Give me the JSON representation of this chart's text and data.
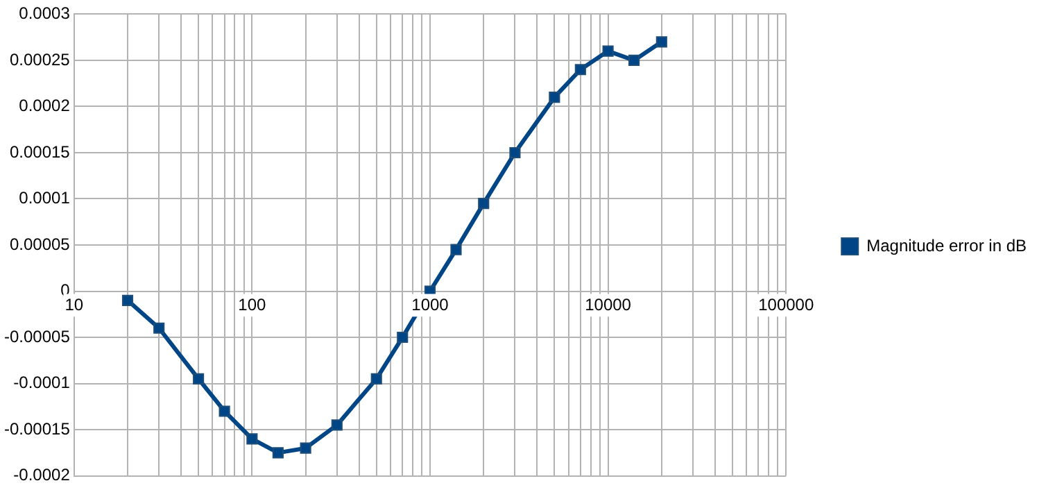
{
  "chart_data": {
    "type": "line",
    "log": "x",
    "x": [
      20,
      30,
      50,
      70,
      100,
      140,
      200,
      300,
      500,
      700,
      1000,
      1400,
      2000,
      3000,
      5000,
      7000,
      10000,
      14000,
      20000
    ],
    "series": [
      {
        "name": "Magnitude error in dB",
        "color": "#004586",
        "values": [
          -1e-05,
          -4e-05,
          -9.5e-05,
          -0.00013,
          -0.00016,
          -0.000175,
          -0.00017,
          -0.000145,
          -9.5e-05,
          -5e-05,
          0,
          4.5e-05,
          9.5e-05,
          0.00015,
          0.00021,
          0.00024,
          0.00026,
          0.00025,
          0.00027
        ]
      }
    ],
    "xlim": [
      10,
      100000
    ],
    "xticks": [
      10,
      {
        "value": 20,
        "label": null
      },
      {
        "value": 30,
        "label": null
      },
      {
        "value": 40,
        "label": null
      },
      {
        "value": 50,
        "label": null
      },
      {
        "value": 60,
        "label": null
      },
      {
        "value": 70,
        "label": null
      },
      {
        "value": 80,
        "label": null
      },
      {
        "value": 90,
        "label": null
      },
      100,
      {
        "value": 200,
        "label": null
      },
      {
        "value": 300,
        "label": null
      },
      {
        "value": 400,
        "label": null
      },
      {
        "value": 500,
        "label": null
      },
      {
        "value": 600,
        "label": null
      },
      {
        "value": 700,
        "label": null
      },
      {
        "value": 800,
        "label": null
      },
      {
        "value": 900,
        "label": null
      },
      1000,
      {
        "value": 2000,
        "label": null
      },
      {
        "value": 3000,
        "label": null
      },
      {
        "value": 4000,
        "label": null
      },
      {
        "value": 5000,
        "label": null
      },
      {
        "value": 6000,
        "label": null
      },
      {
        "value": 7000,
        "label": null
      },
      {
        "value": 8000,
        "label": null
      },
      {
        "value": 9000,
        "label": null
      },
      10000,
      {
        "value": 20000,
        "label": null
      },
      {
        "value": 30000,
        "label": null
      },
      {
        "value": 40000,
        "label": null
      },
      {
        "value": 50000,
        "label": null
      },
      {
        "value": 60000,
        "label": null
      },
      {
        "value": 70000,
        "label": null
      },
      {
        "value": 80000,
        "label": null
      },
      {
        "value": 90000,
        "label": null
      },
      100000
    ],
    "ylim": [
      -0.0002,
      0.0003
    ],
    "yticks": [
      -0.0002,
      -0.00015,
      -0.0001,
      {
        "value": -5e-05,
        "label": "-0.00005"
      },
      0,
      {
        "value": 5e-05,
        "label": "0.00005"
      },
      0.0001,
      0.00015,
      0.0002,
      0.00025,
      0.0003
    ],
    "grid": true,
    "legend": "right",
    "marker": "square",
    "line_style": "solid"
  }
}
